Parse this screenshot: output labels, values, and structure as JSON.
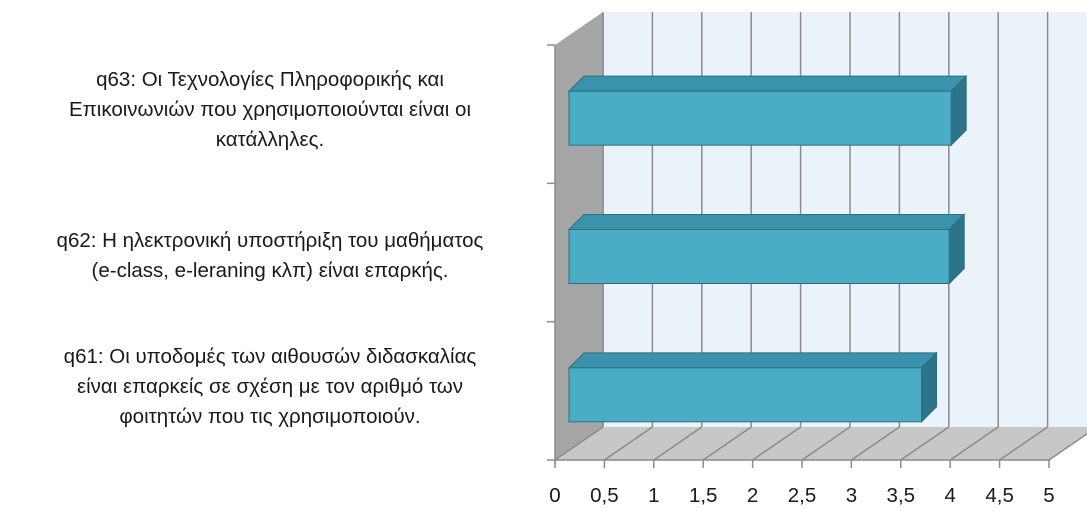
{
  "chart_data": {
    "type": "bar",
    "orientation": "horizontal",
    "style": "3d",
    "categories": [
      "q63: Οι Τεχνολογίες Πληροφορικής και Επικοινωνιών που χρησιμοποιούνται είναι οι κατάλληλες.",
      "q62: Η ηλεκτρονική υποστήριξη του μαθήματος (e-class, e-leraning κλπ) είναι επαρκής.",
      "q61: Οι υποδομές των αιθουσών διδασκαλίας είναι επαρκείς σε σχέση με τον αριθμό των φοιτητών που τις χρησιμοποιούν."
    ],
    "category_lines": [
      [
        "q63: Οι Τεχνολογίες Πληροφορικής και",
        "Επικοινωνιών που χρησιμοποιούνται είναι οι",
        "κατάλληλες."
      ],
      [
        "q62: Η ηλεκτρονική υποστήριξη του μαθήματος",
        "(e-class, e-leraning κλπ) είναι επαρκής."
      ],
      [
        "q61: Οι υποδομές των αιθουσών διδασκαλίας",
        "είναι επαρκείς σε σχέση με τον αριθμό των",
        "φοιτητών που τις χρησιμοποιούν."
      ]
    ],
    "values": [
      4.01,
      3.99,
      3.71
    ],
    "xlim": [
      0,
      5
    ],
    "xticks": [
      "0",
      "0,5",
      "1",
      "1,5",
      "2",
      "2,5",
      "3",
      "3,5",
      "4",
      "4,5",
      "5"
    ],
    "grid": true,
    "colors": {
      "bar_front": "#4bacc6",
      "bar_top": "#3b93ab",
      "bar_side": "#2e7489",
      "bar_edge": "#2b6f83",
      "back_wall": "#eaf3fa",
      "side_wall": "#a6a6a6",
      "floor": "#c7c7c7",
      "grid": "#8c8c8c"
    }
  }
}
